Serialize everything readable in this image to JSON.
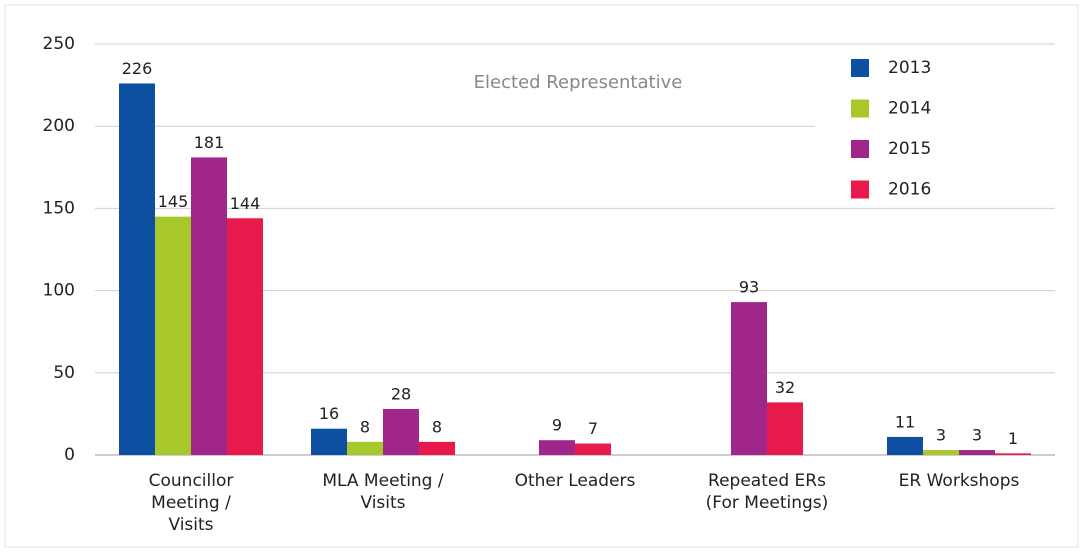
{
  "chart_data": {
    "type": "bar",
    "title": "Elected Representative",
    "categories": [
      "Councillor\nMeeting /\nVisits",
      "MLA Meeting /\nVisits",
      "Other Leaders",
      "Repeated ERs\n(For Meetings)",
      "ER Workshops"
    ],
    "series": [
      {
        "name": "2013",
        "color": "#0d4fa0",
        "values": [
          226,
          16,
          null,
          null,
          11
        ]
      },
      {
        "name": "2014",
        "color": "#a8c72a",
        "values": [
          145,
          8,
          null,
          null,
          3
        ]
      },
      {
        "name": "2015",
        "color": "#a0268a",
        "values": [
          181,
          28,
          9,
          93,
          3
        ]
      },
      {
        "name": "2016",
        "color": "#e8194b",
        "values": [
          144,
          8,
          7,
          32,
          1
        ]
      }
    ],
    "ylim": [
      0,
      250
    ],
    "yticks": [
      0,
      50,
      100,
      150,
      200,
      250
    ],
    "grid": true,
    "legend": "top-right"
  }
}
